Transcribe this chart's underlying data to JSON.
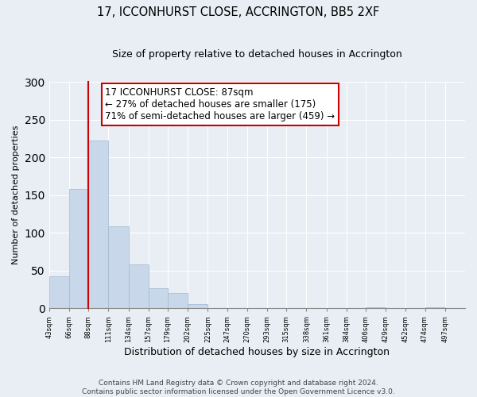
{
  "title": "17, ICCONHURST CLOSE, ACCRINGTON, BB5 2XF",
  "subtitle": "Size of property relative to detached houses in Accrington",
  "xlabel": "Distribution of detached houses by size in Accrington",
  "ylabel": "Number of detached properties",
  "bar_edges": [
    43,
    66,
    88,
    111,
    134,
    157,
    179,
    202,
    225,
    247,
    270,
    293,
    315,
    338,
    361,
    384,
    406,
    429,
    452,
    474,
    497
  ],
  "bar_values": [
    42,
    158,
    222,
    109,
    58,
    27,
    20,
    6,
    0,
    0,
    0,
    0,
    0,
    0,
    0,
    0,
    1,
    0,
    0,
    1,
    0
  ],
  "bar_color": "#c8d8ea",
  "bar_edge_color": "#a0b8d0",
  "property_line_x": 88,
  "property_line_color": "#cc0000",
  "annotation_line1": "17 ICCONHURST CLOSE: 87sqm",
  "annotation_line2": "← 27% of detached houses are smaller (175)",
  "annotation_line3": "71% of semi-detached houses are larger (459) →",
  "annotation_box_edge_color": "#cc0000",
  "annotation_box_face_color": "white",
  "ylim": [
    0,
    300
  ],
  "yticks": [
    0,
    50,
    100,
    150,
    200,
    250,
    300
  ],
  "tick_labels": [
    "43sqm",
    "66sqm",
    "88sqm",
    "111sqm",
    "134sqm",
    "157sqm",
    "179sqm",
    "202sqm",
    "225sqm",
    "247sqm",
    "270sqm",
    "293sqm",
    "315sqm",
    "338sqm",
    "361sqm",
    "384sqm",
    "406sqm",
    "429sqm",
    "452sqm",
    "474sqm",
    "497sqm"
  ],
  "footer_line1": "Contains HM Land Registry data © Crown copyright and database right 2024.",
  "footer_line2": "Contains public sector information licensed under the Open Government Licence v3.0.",
  "background_color": "#e8eef4",
  "title_fontsize": 10.5,
  "subtitle_fontsize": 9,
  "xlabel_fontsize": 9,
  "ylabel_fontsize": 8,
  "annotation_fontsize": 8.5,
  "footer_fontsize": 6.5,
  "grid_color": "#ffffff"
}
